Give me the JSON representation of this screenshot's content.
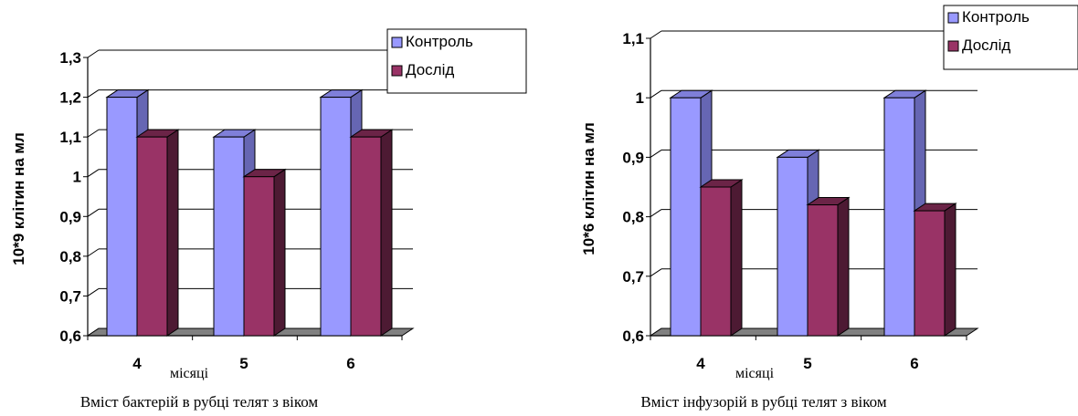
{
  "colors": {
    "control": "#9999FF",
    "control_dark": "#6666b3",
    "control_top": "#7f7fd9",
    "experiment": "#993366",
    "experiment_dark": "#4d1a33",
    "experiment_top": "#6b2447",
    "floor": "#808080",
    "floor_top": "#a6a6a6"
  },
  "chart_data": [
    {
      "type": "bar",
      "title": "Вміст бактерій в рубці телят з віком",
      "xlabel": "місяці",
      "ylabel": "10*9 клітин на мл",
      "categories": [
        "4",
        "5",
        "6"
      ],
      "ylim": [
        0.6,
        1.3
      ],
      "yticks": [
        "0,6",
        "0,7",
        "0,8",
        "0,9",
        "1",
        "1,1",
        "1,2",
        "1,3"
      ],
      "grid": true,
      "legend_position": "top-right",
      "series": [
        {
          "name": "Контроль",
          "values": [
            1.2,
            1.1,
            1.2
          ]
        },
        {
          "name": "Дослід",
          "values": [
            1.1,
            1.0,
            1.1
          ]
        }
      ]
    },
    {
      "type": "bar",
      "title": "Вміст інфузорій в рубці телят з віком",
      "xlabel": "місяці",
      "ylabel": "10*6 клітин на мл",
      "categories": [
        "4",
        "5",
        "6"
      ],
      "ylim": [
        0.6,
        1.1
      ],
      "yticks": [
        "0,6",
        "0,7",
        "0,8",
        "0,9",
        "1",
        "1,1"
      ],
      "grid": true,
      "legend_position": "top-right",
      "series": [
        {
          "name": "Контроль",
          "values": [
            1.0,
            0.9,
            1.0
          ]
        },
        {
          "name": "Дослід",
          "values": [
            0.85,
            0.82,
            0.81
          ]
        }
      ]
    }
  ]
}
